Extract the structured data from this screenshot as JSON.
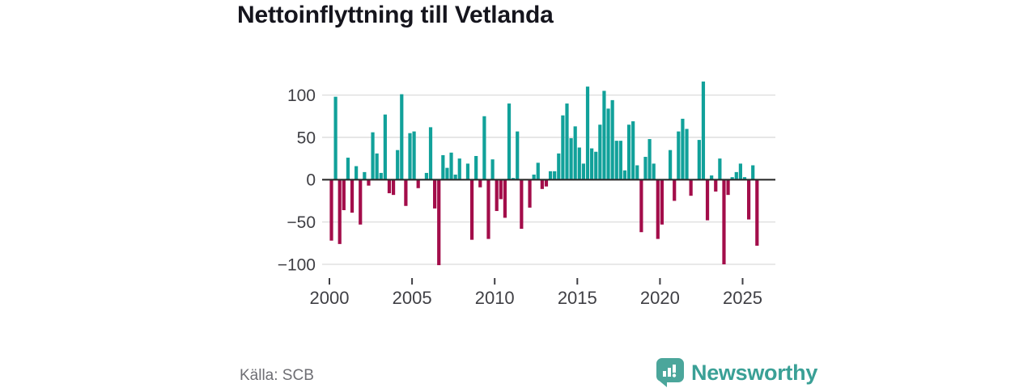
{
  "title": "Nettoinflyttning till Vetlanda",
  "footer": {
    "source": "Källa: SCB",
    "brand": "Newsworthy",
    "brand_icon": "speech-bubble-bar-chart"
  },
  "chart_data": {
    "type": "bar",
    "title": "Nettoinflyttning till Vetlanda",
    "x_unit": "quarter",
    "start": "2000 Q1",
    "end": "2025 Q4",
    "grid": true,
    "legend": "none",
    "ylim": [
      -110,
      122
    ],
    "y_ticks": [
      100,
      50,
      0,
      -50,
      -100
    ],
    "y_tick_labels": [
      "100",
      "50",
      "0",
      "−50",
      "−100"
    ],
    "x_ticks": [
      2000,
      2005,
      2010,
      2015,
      2020,
      2025
    ],
    "x_tick_labels": [
      "2000",
      "2005",
      "2010",
      "2015",
      "2020",
      "2025"
    ],
    "colors": {
      "positive": "#11A19A",
      "negative": "#A30D4A",
      "zero_line": "#2D2D2D",
      "grid_line": "#DCDCDC",
      "axis_text": "#3F3F44"
    },
    "categories": [
      "2000 Q1",
      "2000 Q2",
      "2000 Q3",
      "2000 Q4",
      "2001 Q1",
      "2001 Q2",
      "2001 Q3",
      "2001 Q4",
      "2002 Q1",
      "2002 Q2",
      "2002 Q3",
      "2002 Q4",
      "2003 Q1",
      "2003 Q2",
      "2003 Q3",
      "2003 Q4",
      "2004 Q1",
      "2004 Q2",
      "2004 Q3",
      "2004 Q4",
      "2005 Q1",
      "2005 Q2",
      "2005 Q3",
      "2005 Q4",
      "2006 Q1",
      "2006 Q2",
      "2006 Q3",
      "2006 Q4",
      "2007 Q1",
      "2007 Q2",
      "2007 Q3",
      "2007 Q4",
      "2008 Q1",
      "2008 Q2",
      "2008 Q3",
      "2008 Q4",
      "2009 Q1",
      "2009 Q2",
      "2009 Q3",
      "2009 Q4",
      "2010 Q1",
      "2010 Q2",
      "2010 Q3",
      "2010 Q4",
      "2011 Q1",
      "2011 Q2",
      "2011 Q3",
      "2011 Q4",
      "2012 Q1",
      "2012 Q2",
      "2012 Q3",
      "2012 Q4",
      "2013 Q1",
      "2013 Q2",
      "2013 Q3",
      "2013 Q4",
      "2014 Q1",
      "2014 Q2",
      "2014 Q3",
      "2014 Q4",
      "2015 Q1",
      "2015 Q2",
      "2015 Q3",
      "2015 Q4",
      "2016 Q1",
      "2016 Q2",
      "2016 Q3",
      "2016 Q4",
      "2017 Q1",
      "2017 Q2",
      "2017 Q3",
      "2017 Q4",
      "2018 Q1",
      "2018 Q2",
      "2018 Q3",
      "2018 Q4",
      "2019 Q1",
      "2019 Q2",
      "2019 Q3",
      "2019 Q4",
      "2020 Q1",
      "2020 Q2",
      "2020 Q3",
      "2020 Q4",
      "2021 Q1",
      "2021 Q2",
      "2021 Q3",
      "2021 Q4",
      "2022 Q1",
      "2022 Q2",
      "2022 Q3",
      "2022 Q4",
      "2023 Q1",
      "2023 Q2",
      "2023 Q3",
      "2023 Q4",
      "2024 Q1",
      "2024 Q2",
      "2024 Q3",
      "2024 Q4",
      "2025 Q1",
      "2025 Q2",
      "2025 Q3",
      "2025 Q4"
    ],
    "values": [
      -72,
      98,
      -76,
      -36,
      26,
      -39,
      16,
      -53,
      9,
      -7,
      56,
      31,
      8,
      77,
      -16,
      -18,
      35,
      101,
      -31,
      55,
      57,
      -10,
      0,
      8,
      62,
      -34,
      -101,
      29,
      14,
      32,
      6,
      25,
      0,
      19,
      -71,
      28,
      -9,
      75,
      -70,
      24,
      -37,
      -23,
      -45,
      90,
      2,
      57,
      -58,
      0,
      -33,
      6,
      20,
      -11,
      -8,
      10,
      10,
      31,
      76,
      90,
      49,
      63,
      38,
      19,
      110,
      37,
      33,
      65,
      105,
      84,
      94,
      46,
      46,
      11,
      65,
      69,
      17,
      -62,
      27,
      48,
      19,
      -70,
      -53,
      0,
      35,
      -25,
      57,
      72,
      60,
      -19,
      0,
      47,
      116,
      -48,
      5,
      -14,
      25,
      -100,
      -18,
      3,
      9,
      19,
      3,
      -47,
      17,
      -78
    ]
  }
}
